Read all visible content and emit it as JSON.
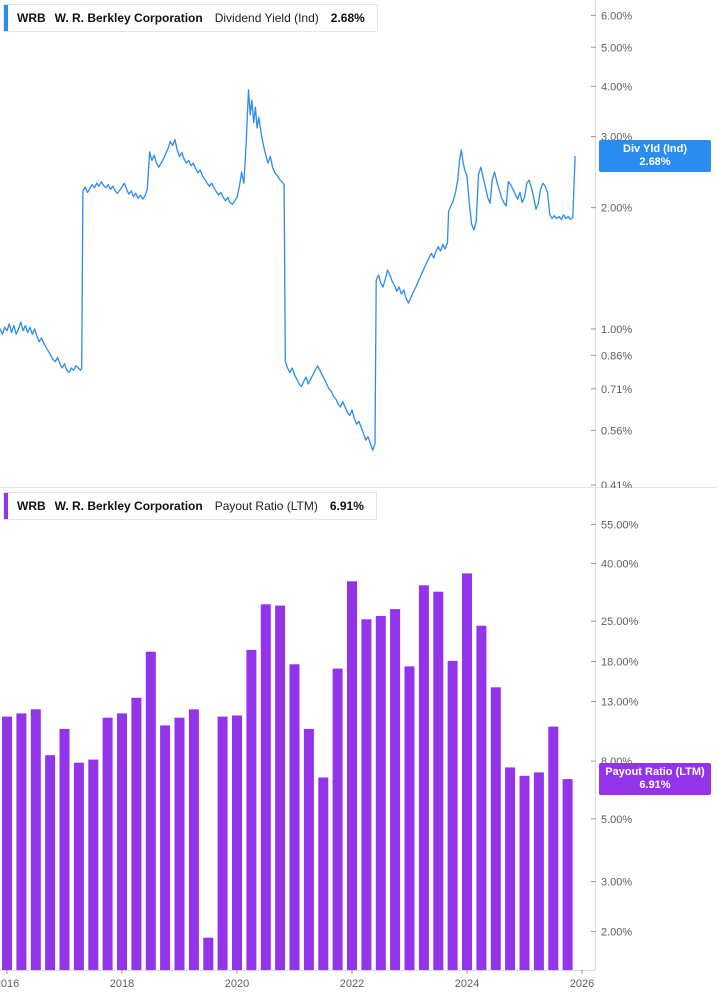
{
  "x_axis": {
    "ticks": [
      {
        "year": 2016,
        "label": "2016"
      },
      {
        "year": 2018,
        "label": "2018"
      },
      {
        "year": 2020,
        "label": "2020"
      },
      {
        "year": 2022,
        "label": "2022"
      },
      {
        "year": 2024,
        "label": "2024"
      },
      {
        "year": 2026,
        "label": "2026"
      }
    ]
  },
  "chart_data": [
    {
      "type": "line",
      "ticker": "WRB",
      "company": "W. R. Berkley Corporation",
      "title": "Dividend Yield (Ind)",
      "current_value": "2.68%",
      "color": "#2b8cf0",
      "badge": {
        "line1": "Div Yld (Ind)",
        "line2": "2.68%",
        "color": "#2b8cf0"
      },
      "y_scale": "log",
      "ylim": [
        0.403,
        6.55
      ],
      "grid": false,
      "legend_position": "top-left",
      "y_ticks": [
        {
          "value": 6,
          "label": "6.00%"
        },
        {
          "value": 5,
          "label": "5.00%"
        },
        {
          "value": 4,
          "label": "4.00%"
        },
        {
          "value": 3,
          "label": "3.00%"
        },
        {
          "value": 2,
          "label": "2.00%"
        },
        {
          "value": 1,
          "label": "1.00%"
        },
        {
          "value": 0.86,
          "label": "0.86%"
        },
        {
          "value": 0.71,
          "label": "0.71%"
        },
        {
          "value": 0.56,
          "label": "0.56%"
        },
        {
          "value": 0.41,
          "label": "0.41%"
        }
      ],
      "points": [
        [
          2015.88,
          1.0
        ],
        [
          2015.92,
          0.97
        ],
        [
          2015.96,
          1.01
        ],
        [
          2016.0,
          0.99
        ],
        [
          2016.04,
          1.03
        ],
        [
          2016.08,
          0.98
        ],
        [
          2016.12,
          1.02
        ],
        [
          2016.16,
          0.97
        ],
        [
          2016.2,
          1.0
        ],
        [
          2016.24,
          1.04
        ],
        [
          2016.28,
          0.99
        ],
        [
          2016.32,
          1.02
        ],
        [
          2016.36,
          0.98
        ],
        [
          2016.4,
          1.01
        ],
        [
          2016.44,
          0.97
        ],
        [
          2016.48,
          1.0
        ],
        [
          2016.52,
          0.96
        ],
        [
          2016.56,
          0.93
        ],
        [
          2016.6,
          0.95
        ],
        [
          2016.64,
          0.92
        ],
        [
          2016.68,
          0.9
        ],
        [
          2016.72,
          0.88
        ],
        [
          2016.76,
          0.86
        ],
        [
          2016.8,
          0.84
        ],
        [
          2016.84,
          0.83
        ],
        [
          2016.88,
          0.85
        ],
        [
          2016.92,
          0.82
        ],
        [
          2016.96,
          0.8
        ],
        [
          2017.0,
          0.82
        ],
        [
          2017.04,
          0.79
        ],
        [
          2017.08,
          0.78
        ],
        [
          2017.12,
          0.8
        ],
        [
          2017.16,
          0.79
        ],
        [
          2017.2,
          0.81
        ],
        [
          2017.24,
          0.8
        ],
        [
          2017.28,
          0.79
        ],
        [
          2017.3,
          0.8
        ],
        [
          2017.32,
          2.2
        ],
        [
          2017.36,
          2.25
        ],
        [
          2017.4,
          2.18
        ],
        [
          2017.44,
          2.23
        ],
        [
          2017.48,
          2.28
        ],
        [
          2017.52,
          2.24
        ],
        [
          2017.56,
          2.3
        ],
        [
          2017.6,
          2.26
        ],
        [
          2017.64,
          2.32
        ],
        [
          2017.68,
          2.27
        ],
        [
          2017.72,
          2.24
        ],
        [
          2017.76,
          2.28
        ],
        [
          2017.8,
          2.22
        ],
        [
          2017.84,
          2.26
        ],
        [
          2017.88,
          2.2
        ],
        [
          2017.92,
          2.17
        ],
        [
          2017.96,
          2.21
        ],
        [
          2018.0,
          2.25
        ],
        [
          2018.04,
          2.3
        ],
        [
          2018.08,
          2.22
        ],
        [
          2018.12,
          2.16
        ],
        [
          2018.16,
          2.2
        ],
        [
          2018.2,
          2.13
        ],
        [
          2018.24,
          2.17
        ],
        [
          2018.28,
          2.11
        ],
        [
          2018.32,
          2.15
        ],
        [
          2018.36,
          2.1
        ],
        [
          2018.4,
          2.14
        ],
        [
          2018.44,
          2.22
        ],
        [
          2018.48,
          2.75
        ],
        [
          2018.52,
          2.62
        ],
        [
          2018.56,
          2.7
        ],
        [
          2018.6,
          2.58
        ],
        [
          2018.64,
          2.52
        ],
        [
          2018.68,
          2.58
        ],
        [
          2018.72,
          2.64
        ],
        [
          2018.76,
          2.72
        ],
        [
          2018.8,
          2.8
        ],
        [
          2018.84,
          2.92
        ],
        [
          2018.88,
          2.85
        ],
        [
          2018.92,
          2.95
        ],
        [
          2018.96,
          2.78
        ],
        [
          2019.0,
          2.68
        ],
        [
          2019.04,
          2.74
        ],
        [
          2019.08,
          2.64
        ],
        [
          2019.12,
          2.58
        ],
        [
          2019.16,
          2.62
        ],
        [
          2019.2,
          2.54
        ],
        [
          2019.24,
          2.58
        ],
        [
          2019.28,
          2.5
        ],
        [
          2019.32,
          2.44
        ],
        [
          2019.36,
          2.48
        ],
        [
          2019.4,
          2.4
        ],
        [
          2019.44,
          2.35
        ],
        [
          2019.48,
          2.3
        ],
        [
          2019.52,
          2.26
        ],
        [
          2019.56,
          2.3
        ],
        [
          2019.6,
          2.24
        ],
        [
          2019.64,
          2.19
        ],
        [
          2019.68,
          2.15
        ],
        [
          2019.72,
          2.18
        ],
        [
          2019.76,
          2.12
        ],
        [
          2019.8,
          2.08
        ],
        [
          2019.84,
          2.12
        ],
        [
          2019.88,
          2.06
        ],
        [
          2019.92,
          2.04
        ],
        [
          2019.96,
          2.08
        ],
        [
          2020.0,
          2.12
        ],
        [
          2020.04,
          2.25
        ],
        [
          2020.08,
          2.45
        ],
        [
          2020.12,
          2.3
        ],
        [
          2020.16,
          2.9
        ],
        [
          2020.2,
          3.92
        ],
        [
          2020.23,
          3.4
        ],
        [
          2020.26,
          3.7
        ],
        [
          2020.29,
          3.25
        ],
        [
          2020.32,
          3.55
        ],
        [
          2020.35,
          3.15
        ],
        [
          2020.38,
          3.35
        ],
        [
          2020.42,
          3.05
        ],
        [
          2020.46,
          2.85
        ],
        [
          2020.5,
          2.7
        ],
        [
          2020.54,
          2.58
        ],
        [
          2020.58,
          2.68
        ],
        [
          2020.62,
          2.52
        ],
        [
          2020.66,
          2.44
        ],
        [
          2020.7,
          2.4
        ],
        [
          2020.74,
          2.35
        ],
        [
          2020.78,
          2.32
        ],
        [
          2020.82,
          2.28
        ],
        [
          2020.84,
          0.83
        ],
        [
          2020.88,
          0.8
        ],
        [
          2020.92,
          0.78
        ],
        [
          2020.96,
          0.8
        ],
        [
          2021.0,
          0.77
        ],
        [
          2021.04,
          0.75
        ],
        [
          2021.08,
          0.73
        ],
        [
          2021.12,
          0.72
        ],
        [
          2021.16,
          0.74
        ],
        [
          2021.2,
          0.76
        ],
        [
          2021.24,
          0.73
        ],
        [
          2021.28,
          0.75
        ],
        [
          2021.32,
          0.77
        ],
        [
          2021.36,
          0.79
        ],
        [
          2021.4,
          0.81
        ],
        [
          2021.44,
          0.79
        ],
        [
          2021.48,
          0.77
        ],
        [
          2021.52,
          0.75
        ],
        [
          2021.56,
          0.73
        ],
        [
          2021.6,
          0.71
        ],
        [
          2021.64,
          0.7
        ],
        [
          2021.68,
          0.68
        ],
        [
          2021.72,
          0.67
        ],
        [
          2021.76,
          0.65
        ],
        [
          2021.8,
          0.64
        ],
        [
          2021.84,
          0.66
        ],
        [
          2021.88,
          0.64
        ],
        [
          2021.92,
          0.62
        ],
        [
          2021.96,
          0.61
        ],
        [
          2022.0,
          0.63
        ],
        [
          2022.04,
          0.6
        ],
        [
          2022.08,
          0.58
        ],
        [
          2022.12,
          0.59
        ],
        [
          2022.16,
          0.57
        ],
        [
          2022.2,
          0.55
        ],
        [
          2022.24,
          0.53
        ],
        [
          2022.28,
          0.54
        ],
        [
          2022.32,
          0.52
        ],
        [
          2022.36,
          0.5
        ],
        [
          2022.4,
          0.52
        ],
        [
          2022.42,
          1.32
        ],
        [
          2022.46,
          1.36
        ],
        [
          2022.5,
          1.3
        ],
        [
          2022.54,
          1.27
        ],
        [
          2022.58,
          1.33
        ],
        [
          2022.62,
          1.4
        ],
        [
          2022.66,
          1.36
        ],
        [
          2022.7,
          1.31
        ],
        [
          2022.74,
          1.28
        ],
        [
          2022.78,
          1.24
        ],
        [
          2022.82,
          1.27
        ],
        [
          2022.86,
          1.22
        ],
        [
          2022.9,
          1.25
        ],
        [
          2022.94,
          1.19
        ],
        [
          2022.98,
          1.16
        ],
        [
          2023.02,
          1.19
        ],
        [
          2023.06,
          1.23
        ],
        [
          2023.1,
          1.26
        ],
        [
          2023.14,
          1.3
        ],
        [
          2023.18,
          1.34
        ],
        [
          2023.22,
          1.38
        ],
        [
          2023.26,
          1.42
        ],
        [
          2023.3,
          1.46
        ],
        [
          2023.34,
          1.5
        ],
        [
          2023.38,
          1.54
        ],
        [
          2023.42,
          1.5
        ],
        [
          2023.46,
          1.56
        ],
        [
          2023.5,
          1.6
        ],
        [
          2023.54,
          1.56
        ],
        [
          2023.58,
          1.62
        ],
        [
          2023.62,
          1.58
        ],
        [
          2023.66,
          1.64
        ],
        [
          2023.68,
          1.96
        ],
        [
          2023.72,
          2.02
        ],
        [
          2023.76,
          2.08
        ],
        [
          2023.8,
          2.18
        ],
        [
          2023.84,
          2.35
        ],
        [
          2023.87,
          2.62
        ],
        [
          2023.9,
          2.78
        ],
        [
          2023.93,
          2.6
        ],
        [
          2023.96,
          2.48
        ],
        [
          2024.0,
          2.4
        ],
        [
          2024.04,
          2.05
        ],
        [
          2024.08,
          1.82
        ],
        [
          2024.12,
          1.76
        ],
        [
          2024.16,
          1.85
        ],
        [
          2024.2,
          2.42
        ],
        [
          2024.24,
          2.52
        ],
        [
          2024.28,
          2.38
        ],
        [
          2024.32,
          2.25
        ],
        [
          2024.36,
          2.12
        ],
        [
          2024.4,
          2.05
        ],
        [
          2024.44,
          2.35
        ],
        [
          2024.48,
          2.45
        ],
        [
          2024.52,
          2.32
        ],
        [
          2024.56,
          2.22
        ],
        [
          2024.6,
          2.12
        ],
        [
          2024.64,
          2.06
        ],
        [
          2024.68,
          2.02
        ],
        [
          2024.72,
          2.32
        ],
        [
          2024.76,
          2.28
        ],
        [
          2024.8,
          2.22
        ],
        [
          2024.84,
          2.16
        ],
        [
          2024.88,
          2.1
        ],
        [
          2024.92,
          2.18
        ],
        [
          2024.96,
          2.06
        ],
        [
          2025.0,
          2.12
        ],
        [
          2025.04,
          2.3
        ],
        [
          2025.08,
          2.34
        ],
        [
          2025.12,
          2.24
        ],
        [
          2025.16,
          2.12
        ],
        [
          2025.2,
          1.98
        ],
        [
          2025.24,
          2.05
        ],
        [
          2025.28,
          2.22
        ],
        [
          2025.32,
          2.3
        ],
        [
          2025.36,
          2.26
        ],
        [
          2025.4,
          2.18
        ],
        [
          2025.44,
          1.92
        ],
        [
          2025.48,
          1.88
        ],
        [
          2025.52,
          1.91
        ],
        [
          2025.56,
          1.88
        ],
        [
          2025.6,
          1.9
        ],
        [
          2025.64,
          1.87
        ],
        [
          2025.68,
          1.92
        ],
        [
          2025.72,
          1.88
        ],
        [
          2025.76,
          1.9
        ],
        [
          2025.8,
          1.87
        ],
        [
          2025.84,
          1.89
        ],
        [
          2025.88,
          2.68
        ]
      ]
    },
    {
      "type": "bar",
      "ticker": "WRB",
      "company": "W. R. Berkley Corporation",
      "title": "Payout Ratio (LTM)",
      "current_value": "6.91%",
      "color": "#9333ea",
      "badge": {
        "line1": "Payout Ratio (LTM)",
        "line2": "6.91%",
        "color": "#9333ea"
      },
      "y_scale": "log",
      "ylim": [
        1.46,
        74
      ],
      "grid": false,
      "legend_position": "top-left",
      "y_ticks": [
        {
          "value": 55,
          "label": "55.00%"
        },
        {
          "value": 40,
          "label": "40.00%"
        },
        {
          "value": 25,
          "label": "25.00%"
        },
        {
          "value": 18,
          "label": "18.00%"
        },
        {
          "value": 13,
          "label": "13.00%"
        },
        {
          "value": 8,
          "label": "8.00%"
        },
        {
          "value": 5,
          "label": "5.00%"
        },
        {
          "value": 3,
          "label": "3.00%"
        },
        {
          "value": 2,
          "label": "2.00%"
        }
      ],
      "bars": [
        [
          2016.0,
          11.5
        ],
        [
          2016.25,
          11.8
        ],
        [
          2016.5,
          12.2
        ],
        [
          2016.75,
          8.4
        ],
        [
          2017.0,
          10.4
        ],
        [
          2017.25,
          7.9
        ],
        [
          2017.5,
          8.1
        ],
        [
          2017.75,
          11.4
        ],
        [
          2018.0,
          11.8
        ],
        [
          2018.25,
          13.4
        ],
        [
          2018.5,
          19.5
        ],
        [
          2018.75,
          10.7
        ],
        [
          2019.0,
          11.4
        ],
        [
          2019.25,
          12.2
        ],
        [
          2019.5,
          1.9
        ],
        [
          2019.75,
          11.5
        ],
        [
          2020.0,
          11.6
        ],
        [
          2020.25,
          19.8
        ],
        [
          2020.5,
          28.7
        ],
        [
          2020.75,
          28.4
        ],
        [
          2021.0,
          17.6
        ],
        [
          2021.25,
          10.4
        ],
        [
          2021.5,
          7.0
        ],
        [
          2021.75,
          17.0
        ],
        [
          2022.0,
          34.6
        ],
        [
          2022.25,
          25.4
        ],
        [
          2022.5,
          26.1
        ],
        [
          2022.75,
          27.6
        ],
        [
          2023.0,
          17.3
        ],
        [
          2023.25,
          33.5
        ],
        [
          2023.5,
          31.8
        ],
        [
          2023.75,
          18.1
        ],
        [
          2024.0,
          36.9
        ],
        [
          2024.25,
          24.1
        ],
        [
          2024.5,
          14.6
        ],
        [
          2024.75,
          7.6
        ],
        [
          2025.0,
          7.1
        ],
        [
          2025.25,
          7.3
        ],
        [
          2025.5,
          10.6
        ],
        [
          2025.75,
          6.91
        ]
      ]
    }
  ]
}
